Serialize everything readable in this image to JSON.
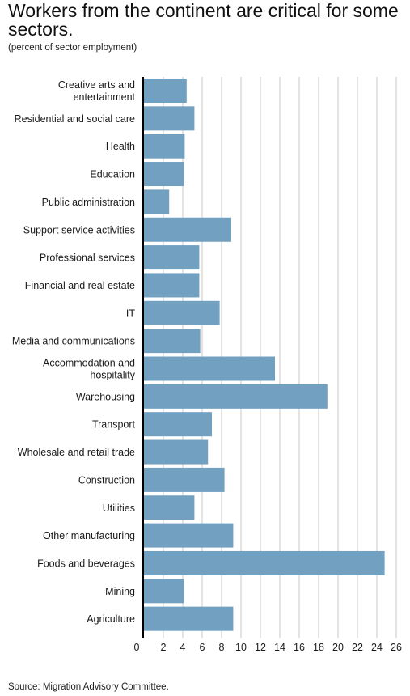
{
  "title": "Workers from the continent are critical for some sectors.",
  "subtitle": "(percent of sector employment)",
  "source": "Source: Migration Advisory Committee.",
  "colors": {
    "bar": "#72a0c1",
    "grid": "#c8c8c8",
    "axis": "#000000"
  },
  "chart_data": {
    "type": "bar",
    "orientation": "horizontal",
    "title": "Workers from the continent are critical for some sectors.",
    "subtitle": "(percent of sector employment)",
    "xlabel": "",
    "ylabel": "",
    "xlim": [
      0,
      26
    ],
    "xticks": [
      0,
      2,
      4,
      6,
      8,
      10,
      12,
      14,
      16,
      18,
      20,
      22,
      24,
      26
    ],
    "grid": "vertical",
    "categories": [
      [
        "Creative arts and",
        "entertainment"
      ],
      [
        "Residential and social care"
      ],
      [
        "Health"
      ],
      [
        "Education"
      ],
      [
        "Public administration"
      ],
      [
        "Support service activities"
      ],
      [
        "Professional services"
      ],
      [
        "Financial and real estate"
      ],
      [
        "IT"
      ],
      [
        "Media and communications"
      ],
      [
        "Accommodation and",
        "hospitality"
      ],
      [
        "Warehousing"
      ],
      [
        "Transport"
      ],
      [
        "Wholesale and retail trade"
      ],
      [
        "Construction"
      ],
      [
        "Utilities"
      ],
      [
        "Other manufacturing"
      ],
      [
        "Foods and beverages"
      ],
      [
        "Mining"
      ],
      [
        "Agriculture"
      ]
    ],
    "values": [
      4.4,
      5.2,
      4.2,
      4.1,
      2.6,
      9.0,
      5.7,
      5.7,
      7.8,
      5.8,
      13.5,
      18.9,
      7.0,
      6.6,
      8.3,
      5.2,
      9.2,
      24.8,
      4.1,
      9.2
    ]
  }
}
